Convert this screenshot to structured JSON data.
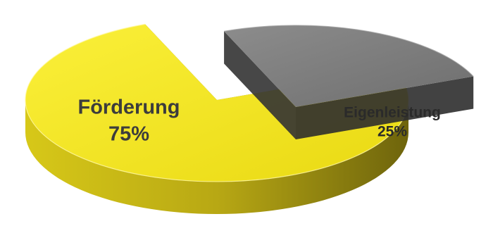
{
  "chart_data": {
    "type": "pie",
    "title": "",
    "exploded": true,
    "style": "3d",
    "legend": "none",
    "slices": [
      {
        "label": "Förderung",
        "value": 75,
        "value_label": "75%",
        "color": "#F4E41C",
        "side_color": "#A99A14",
        "text_color": "#3C3C3C"
      },
      {
        "label": "Eigenleistung",
        "value": 25,
        "value_label": "25%",
        "color": "#7E7E7E",
        "side_color": "#3A3A3A",
        "text_color": "#2A2A2A"
      }
    ]
  }
}
